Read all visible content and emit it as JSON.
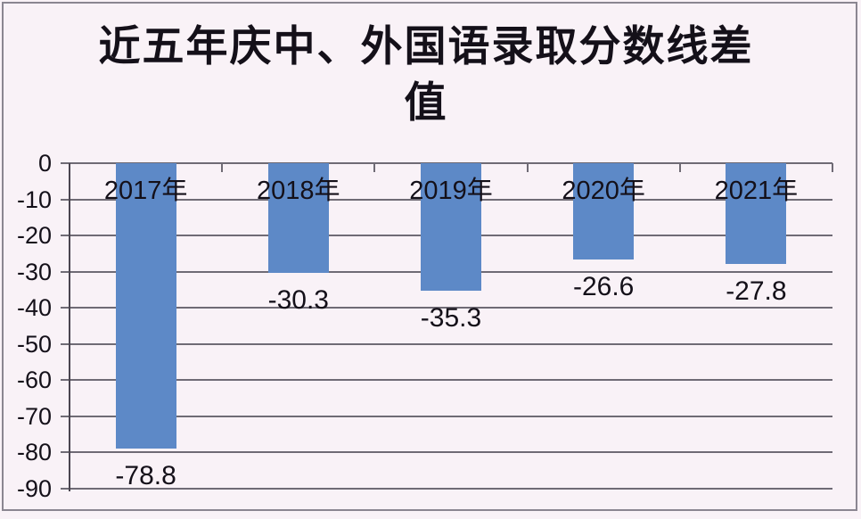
{
  "title": "近五年庆中、外国语录取分数线差值",
  "title_lines": [
    "近五年庆中、外国语录取分数线差",
    "值"
  ],
  "chart_data": {
    "type": "bar",
    "orientation": "vertical",
    "title": "近五年庆中、外国语录取分数线差值",
    "categories": [
      "2017年",
      "2018年",
      "2019年",
      "2020年",
      "2021年"
    ],
    "values": [
      -78.8,
      -30.3,
      -35.3,
      -26.6,
      -27.8
    ],
    "value_labels": [
      "-78.8",
      "-30.3",
      "-35.3",
      "-26.6",
      "-27.8"
    ],
    "xlabel": "",
    "ylabel": "",
    "ylim": [
      0,
      -90
    ],
    "yticks": [
      0,
      -10,
      -20,
      -30,
      -40,
      -50,
      -60,
      -70,
      -80,
      -90
    ],
    "ytick_labels": [
      "0",
      "-10",
      "-20",
      "-30",
      "-40",
      "-50",
      "-60",
      "-70",
      "-80",
      "-90"
    ],
    "grid": true,
    "legend": "none",
    "colors": {
      "bar": "#5d89c7",
      "background": "#f9f2f7",
      "gridline": "#6f6b75",
      "axis": "#4a4550",
      "text": "#141019",
      "frame": "#8b8691"
    }
  }
}
